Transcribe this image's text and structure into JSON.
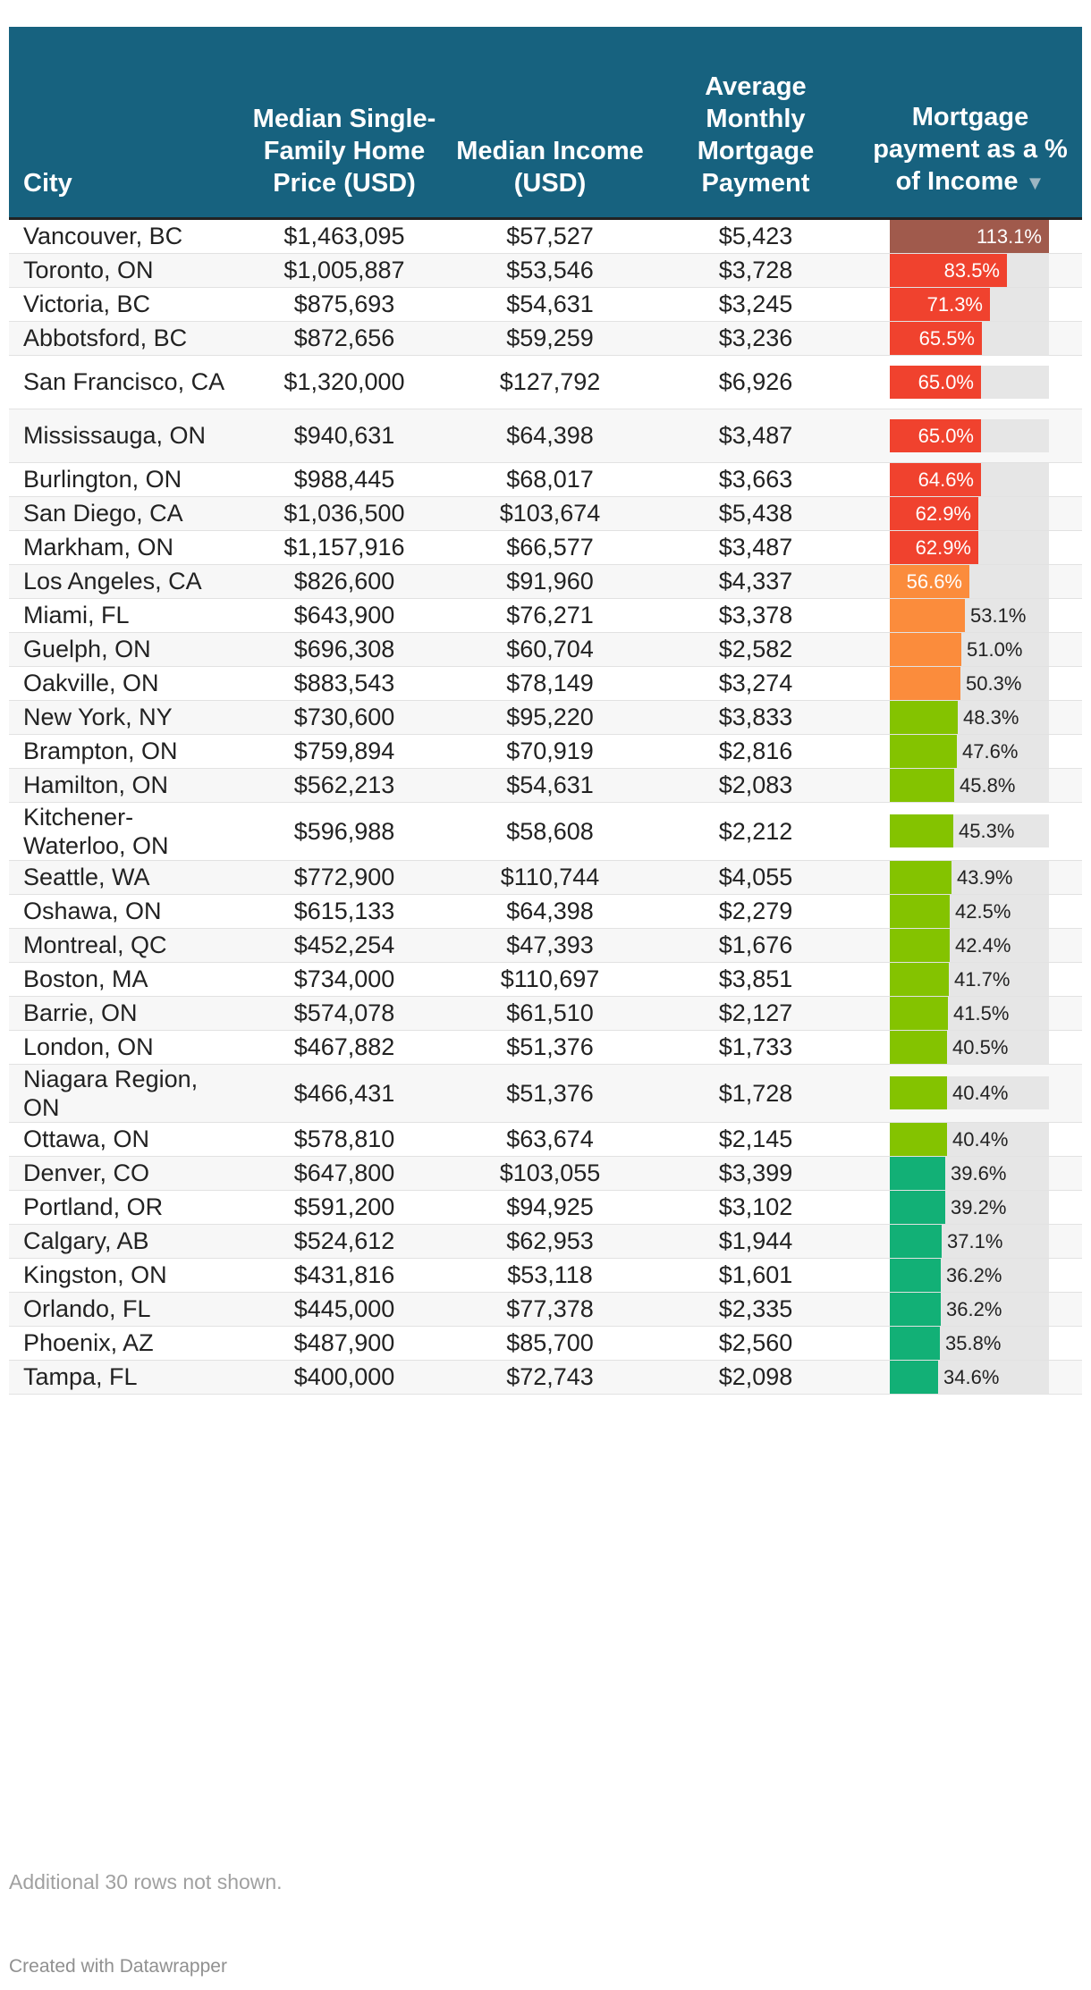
{
  "colors": {
    "header_bg": "#17627f",
    "bar_track": "#e6e6e6",
    "bar_brown": "#a05a4c",
    "bar_red": "#f0422e",
    "bar_orange": "#fb8c3c",
    "bar_lime": "#84c300",
    "bar_teal": "#12b076"
  },
  "headers": {
    "city": "City",
    "price": "Median Single-Family Home Price (USD)",
    "income": "Median Income (USD)",
    "mortgage": "Average Monthly Mortgage Payment",
    "pct": "Mortgage payment as a % of Income",
    "sort_icon": "▼"
  },
  "chart_data": {
    "type": "table",
    "columns": [
      "City",
      "Median Single-Family Home Price (USD)",
      "Median Income (USD)",
      "Average Monthly Mortgage Payment",
      "Mortgage payment as a % of Income"
    ],
    "bar_scale_max": 113.1,
    "rows": [
      {
        "city": "Vancouver, BC",
        "price": "$1,463,095",
        "income": "$57,527",
        "mortgage": "$5,423",
        "pct": 113.1,
        "pct_label": "113.1%",
        "color": "#a05a4c"
      },
      {
        "city": "Toronto, ON",
        "price": "$1,005,887",
        "income": "$53,546",
        "mortgage": "$3,728",
        "pct": 83.5,
        "pct_label": "83.5%",
        "color": "#f0422e"
      },
      {
        "city": "Victoria, BC",
        "price": "$875,693",
        "income": "$54,631",
        "mortgage": "$3,245",
        "pct": 71.3,
        "pct_label": "71.3%",
        "color": "#f0422e"
      },
      {
        "city": "Abbotsford, BC",
        "price": "$872,656",
        "income": "$59,259",
        "mortgage": "$3,236",
        "pct": 65.5,
        "pct_label": "65.5%",
        "color": "#f0422e"
      },
      {
        "city": "San Francisco, CA",
        "price": "$1,320,000",
        "income": "$127,792",
        "mortgage": "$6,926",
        "pct": 65.0,
        "pct_label": "65.0%",
        "color": "#f0422e",
        "tall": true
      },
      {
        "city": "Mississauga, ON",
        "price": "$940,631",
        "income": "$64,398",
        "mortgage": "$3,487",
        "pct": 65.0,
        "pct_label": "65.0%",
        "color": "#f0422e",
        "tall": true
      },
      {
        "city": "Burlington, ON",
        "price": "$988,445",
        "income": "$68,017",
        "mortgage": "$3,663",
        "pct": 64.6,
        "pct_label": "64.6%",
        "color": "#f0422e"
      },
      {
        "city": "San Diego, CA",
        "price": "$1,036,500",
        "income": "$103,674",
        "mortgage": "$5,438",
        "pct": 62.9,
        "pct_label": "62.9%",
        "color": "#f0422e"
      },
      {
        "city": "Markham, ON",
        "price": "$1,157,916",
        "income": "$66,577",
        "mortgage": "$3,487",
        "pct": 62.9,
        "pct_label": "62.9%",
        "color": "#f0422e"
      },
      {
        "city": "Los Angeles, CA",
        "price": "$826,600",
        "income": "$91,960",
        "mortgage": "$4,337",
        "pct": 56.6,
        "pct_label": "56.6%",
        "color": "#fb8c3c"
      },
      {
        "city": "Miami, FL",
        "price": "$643,900",
        "income": "$76,271",
        "mortgage": "$3,378",
        "pct": 53.1,
        "pct_label": "53.1%",
        "color": "#fb8c3c"
      },
      {
        "city": "Guelph, ON",
        "price": "$696,308",
        "income": "$60,704",
        "mortgage": "$2,582",
        "pct": 51.0,
        "pct_label": "51.0%",
        "color": "#fb8c3c"
      },
      {
        "city": "Oakville, ON",
        "price": "$883,543",
        "income": "$78,149",
        "mortgage": "$3,274",
        "pct": 50.3,
        "pct_label": "50.3%",
        "color": "#fb8c3c"
      },
      {
        "city": "New York, NY",
        "price": "$730,600",
        "income": "$95,220",
        "mortgage": "$3,833",
        "pct": 48.3,
        "pct_label": "48.3%",
        "color": "#84c300"
      },
      {
        "city": "Brampton, ON",
        "price": "$759,894",
        "income": "$70,919",
        "mortgage": "$2,816",
        "pct": 47.6,
        "pct_label": "47.6%",
        "color": "#84c300"
      },
      {
        "city": "Hamilton, ON",
        "price": "$562,213",
        "income": "$54,631",
        "mortgage": "$2,083",
        "pct": 45.8,
        "pct_label": "45.8%",
        "color": "#84c300"
      },
      {
        "city": "Kitchener-Waterloo, ON",
        "price": "$596,988",
        "income": "$58,608",
        "mortgage": "$2,212",
        "pct": 45.3,
        "pct_label": "45.3%",
        "color": "#84c300",
        "tall": true
      },
      {
        "city": "Seattle, WA",
        "price": "$772,900",
        "income": "$110,744",
        "mortgage": "$4,055",
        "pct": 43.9,
        "pct_label": "43.9%",
        "color": "#84c300"
      },
      {
        "city": "Oshawa, ON",
        "price": "$615,133",
        "income": "$64,398",
        "mortgage": "$2,279",
        "pct": 42.5,
        "pct_label": "42.5%",
        "color": "#84c300"
      },
      {
        "city": "Montreal, QC",
        "price": "$452,254",
        "income": "$47,393",
        "mortgage": "$1,676",
        "pct": 42.4,
        "pct_label": "42.4%",
        "color": "#84c300"
      },
      {
        "city": "Boston, MA",
        "price": "$734,000",
        "income": "$110,697",
        "mortgage": "$3,851",
        "pct": 41.7,
        "pct_label": "41.7%",
        "color": "#84c300"
      },
      {
        "city": "Barrie, ON",
        "price": "$574,078",
        "income": "$61,510",
        "mortgage": "$2,127",
        "pct": 41.5,
        "pct_label": "41.5%",
        "color": "#84c300"
      },
      {
        "city": "London, ON",
        "price": "$467,882",
        "income": "$51,376",
        "mortgage": "$1,733",
        "pct": 40.5,
        "pct_label": "40.5%",
        "color": "#84c300"
      },
      {
        "city": "Niagara Region, ON",
        "price": "$466,431",
        "income": "$51,376",
        "mortgage": "$1,728",
        "pct": 40.4,
        "pct_label": "40.4%",
        "color": "#84c300",
        "tall": true
      },
      {
        "city": "Ottawa, ON",
        "price": "$578,810",
        "income": "$63,674",
        "mortgage": "$2,145",
        "pct": 40.4,
        "pct_label": "40.4%",
        "color": "#84c300"
      },
      {
        "city": "Denver, CO",
        "price": "$647,800",
        "income": "$103,055",
        "mortgage": "$3,399",
        "pct": 39.6,
        "pct_label": "39.6%",
        "color": "#12b076"
      },
      {
        "city": "Portland, OR",
        "price": "$591,200",
        "income": "$94,925",
        "mortgage": "$3,102",
        "pct": 39.2,
        "pct_label": "39.2%",
        "color": "#12b076"
      },
      {
        "city": "Calgary, AB",
        "price": "$524,612",
        "income": "$62,953",
        "mortgage": "$1,944",
        "pct": 37.1,
        "pct_label": "37.1%",
        "color": "#12b076"
      },
      {
        "city": "Kingston, ON",
        "price": "$431,816",
        "income": "$53,118",
        "mortgage": "$1,601",
        "pct": 36.2,
        "pct_label": "36.2%",
        "color": "#12b076"
      },
      {
        "city": "Orlando, FL",
        "price": "$445,000",
        "income": "$77,378",
        "mortgage": "$2,335",
        "pct": 36.2,
        "pct_label": "36.2%",
        "color": "#12b076"
      },
      {
        "city": "Phoenix, AZ",
        "price": "$487,900",
        "income": "$85,700",
        "mortgage": "$2,560",
        "pct": 35.8,
        "pct_label": "35.8%",
        "color": "#12b076"
      },
      {
        "city": "Tampa, FL",
        "price": "$400,000",
        "income": "$72,743",
        "mortgage": "$2,098",
        "pct": 34.6,
        "pct_label": "34.6%",
        "color": "#12b076"
      }
    ]
  },
  "footer": {
    "note": "Additional 30 rows not shown.",
    "credit": "Created with Datawrapper"
  }
}
